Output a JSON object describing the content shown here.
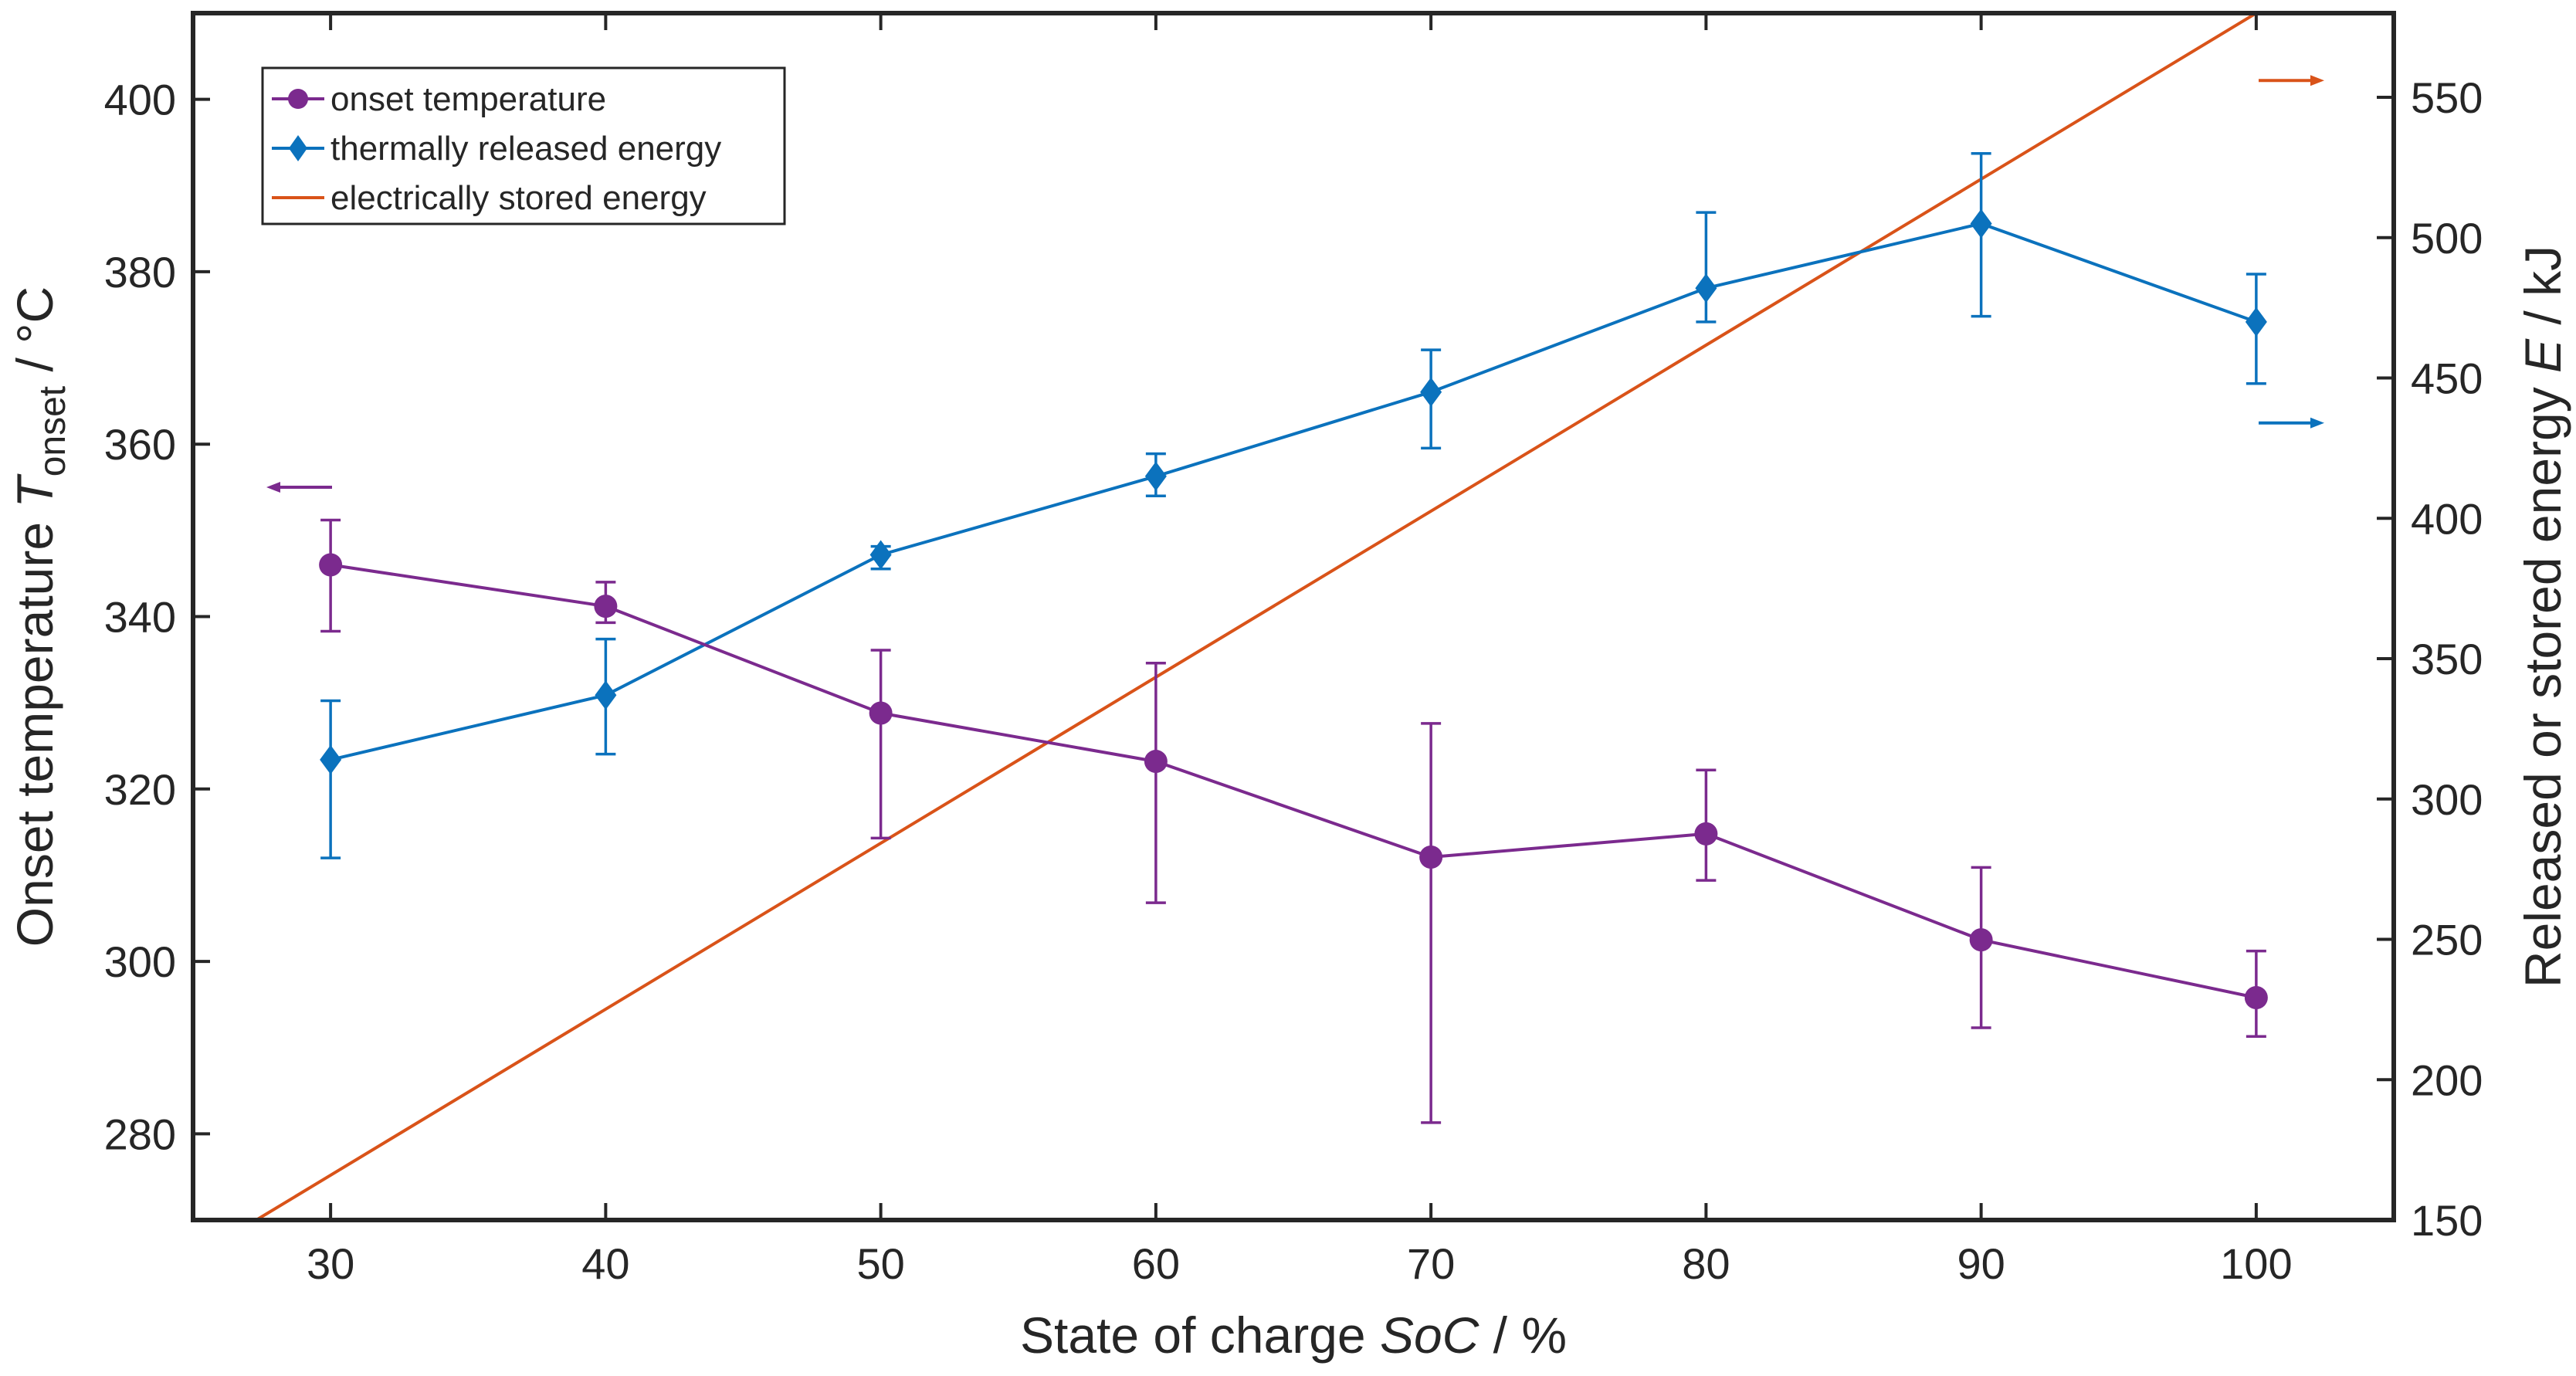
{
  "chart_data": {
    "type": "line",
    "x": [
      30,
      40,
      50,
      60,
      70,
      80,
      90,
      100
    ],
    "xlim": [
      25,
      105
    ],
    "xticks": [
      30,
      40,
      50,
      60,
      70,
      80,
      90,
      100
    ],
    "xlabel": {
      "prefix": "State of charge ",
      "var": "SoC",
      "suffix": " / %"
    },
    "ylabel_left": {
      "prefix": "Onset temperature ",
      "var": "T",
      "sub": "onset",
      "suffix": " / °C"
    },
    "ylabel_right": {
      "prefix": "Released or stored energy ",
      "var": "E",
      "suffix": " / kJ"
    },
    "ylim_left": [
      270,
      410
    ],
    "yticks_left": [
      280,
      300,
      320,
      340,
      360,
      380,
      400
    ],
    "ylim_right": [
      150,
      580
    ],
    "yticks_right": [
      150,
      200,
      250,
      300,
      350,
      400,
      450,
      500,
      550
    ],
    "series": [
      {
        "name": "onset temperature",
        "axis": "left",
        "marker": "circle",
        "color": "#7b2a8e",
        "y": [
          346.0,
          341.2,
          328.8,
          323.2,
          312.1,
          314.8,
          302.5,
          295.8
        ],
        "err_low": [
          338.3,
          339.3,
          314.3,
          306.8,
          281.3,
          309.4,
          292.3,
          291.3
        ],
        "err_high": [
          351.2,
          344.0,
          336.1,
          334.6,
          327.6,
          322.2,
          310.9,
          301.2
        ]
      },
      {
        "name": "thermally released energy",
        "axis": "right",
        "marker": "diamond",
        "color": "#0b72bd",
        "y": [
          314,
          337,
          387,
          415,
          445,
          482,
          505,
          470
        ],
        "err_low": [
          279,
          316,
          382,
          408,
          425,
          470,
          472,
          448
        ],
        "err_high": [
          335,
          357,
          390,
          423,
          460,
          509,
          530,
          487
        ]
      },
      {
        "name": "electrically stored energy",
        "axis": "right",
        "marker": "none",
        "color": "#d95319",
        "line_x": [
          27.3,
          100
        ],
        "line_y": [
          150,
          580
        ]
      }
    ],
    "direction_arrows": [
      {
        "series": "onset temperature",
        "points_to": "left",
        "y": 355
      },
      {
        "series": "electrically stored energy",
        "points_to": "right",
        "y": 556
      },
      {
        "series": "thermally released energy",
        "points_to": "right",
        "y": 434
      }
    ],
    "legend_position": "top-left",
    "grid": false
  }
}
